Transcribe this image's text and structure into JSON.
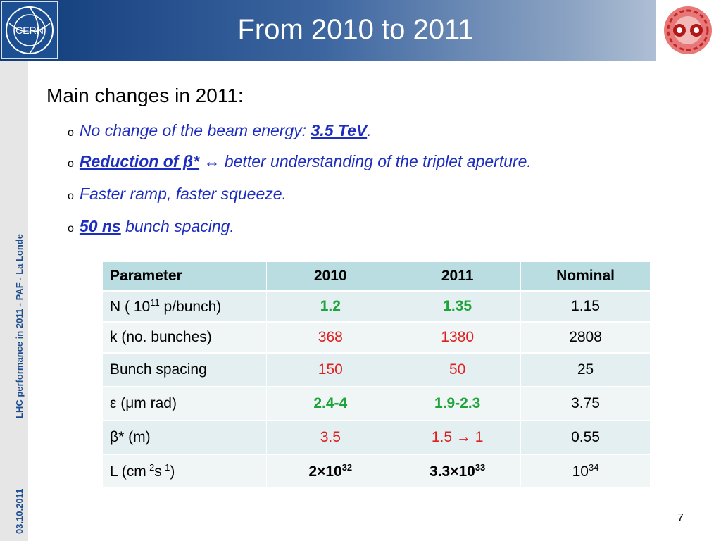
{
  "header": {
    "title": "From 2010 to 2011",
    "logo_left_text": "CERN"
  },
  "sidebar": {
    "footer_text": "LHC performance in 2011 - PAF - La Londe",
    "date": "03.10.2011"
  },
  "content": {
    "heading": "Main changes in 2011:",
    "bullets": [
      {
        "text": "No change of the beam energy: ",
        "highlight": "3.5 TeV",
        "tail": "."
      },
      {
        "highlight": "Reduction of β*",
        "symbol": "↔",
        "tail": " better understanding of the triplet aperture."
      },
      {
        "text": "Faster ramp, faster squeeze."
      },
      {
        "highlight": "50 ns",
        "tail": " bunch spacing."
      }
    ]
  },
  "table": {
    "headers": [
      "Parameter",
      "2010",
      "2011",
      "Nominal"
    ],
    "rows": [
      {
        "param": "N ( 10",
        "sup": "11",
        "param_tail": " p/bunch)",
        "v2010": "1.2",
        "v2011": "1.35",
        "nominal": "1.15"
      },
      {
        "param": "k (no. bunches)",
        "v2010": "368",
        "v2011": "1380",
        "nominal": "2808"
      },
      {
        "param": "Bunch spacing",
        "v2010": "150",
        "v2011": "50",
        "nominal": "25"
      },
      {
        "param": "ε (μm rad)",
        "v2010": "2.4-4",
        "v2011": "1.9-2.3",
        "nominal": "3.75"
      },
      {
        "param": "β* (m)",
        "v2010": "3.5",
        "v2011": "1.5 → 1",
        "nominal": "0.55"
      },
      {
        "param": "L (cm",
        "sup1": "-2",
        "mid": "s",
        "sup2": "-1",
        "tail": ")",
        "v2010_base": "2×10",
        "v2010_sup": "32",
        "v2011_base": "3.3×10",
        "v2011_sup": "33",
        "nominal_base": "10",
        "nominal_sup": "34"
      }
    ]
  },
  "page_number": "7",
  "colors": {
    "accent_blue": "#1d2dbf",
    "highlight_green": "#1ea43a",
    "highlight_red": "#e01e1e",
    "table_header": "#b9dde0"
  }
}
